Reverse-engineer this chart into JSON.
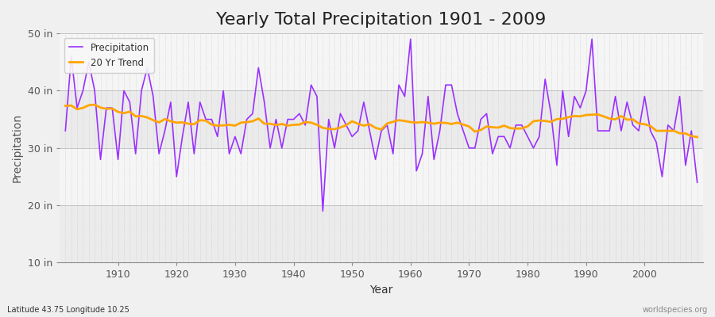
{
  "title": "Yearly Total Precipitation 1901 - 2009",
  "xlabel": "Year",
  "ylabel": "Precipitation",
  "footnote_left": "Latitude 43.75 Longitude 10.25",
  "footnote_right": "worldspecies.org",
  "ylim": [
    10,
    50
  ],
  "yticks": [
    10,
    20,
    30,
    40,
    50
  ],
  "ytick_labels": [
    "10 in",
    "20 in",
    "30 in",
    "40 in",
    "50 in"
  ],
  "years": [
    1901,
    1902,
    1903,
    1904,
    1905,
    1906,
    1907,
    1908,
    1909,
    1910,
    1911,
    1912,
    1913,
    1914,
    1915,
    1916,
    1917,
    1918,
    1919,
    1920,
    1921,
    1922,
    1923,
    1924,
    1925,
    1926,
    1927,
    1928,
    1929,
    1930,
    1931,
    1932,
    1933,
    1934,
    1935,
    1936,
    1937,
    1938,
    1939,
    1940,
    1941,
    1942,
    1943,
    1944,
    1945,
    1946,
    1947,
    1948,
    1949,
    1950,
    1951,
    1952,
    1953,
    1954,
    1955,
    1956,
    1957,
    1958,
    1959,
    1960,
    1961,
    1962,
    1963,
    1964,
    1965,
    1966,
    1967,
    1968,
    1969,
    1970,
    1971,
    1972,
    1973,
    1974,
    1975,
    1976,
    1977,
    1978,
    1979,
    1980,
    1981,
    1982,
    1983,
    1984,
    1985,
    1986,
    1987,
    1988,
    1989,
    1990,
    1991,
    1992,
    1993,
    1994,
    1995,
    1996,
    1997,
    1998,
    1999,
    2000,
    2001,
    2002,
    2003,
    2004,
    2005,
    2006,
    2007,
    2008,
    2009
  ],
  "precip": [
    33,
    46,
    37,
    40,
    45,
    40,
    28,
    37,
    37,
    28,
    40,
    38,
    29,
    40,
    44,
    39,
    29,
    33,
    38,
    25,
    32,
    38,
    29,
    38,
    35,
    35,
    32,
    40,
    29,
    32,
    29,
    35,
    36,
    44,
    38,
    30,
    35,
    30,
    35,
    35,
    36,
    34,
    41,
    39,
    19,
    35,
    30,
    36,
    34,
    32,
    33,
    38,
    33,
    28,
    33,
    34,
    29,
    41,
    39,
    49,
    26,
    29,
    39,
    28,
    33,
    41,
    41,
    36,
    33,
    30,
    30,
    35,
    36,
    29,
    32,
    32,
    30,
    34,
    34,
    32,
    30,
    32,
    42,
    36,
    27,
    40,
    32,
    39,
    37,
    40,
    49,
    33,
    33,
    33,
    39,
    33,
    38,
    34,
    33,
    39,
    33,
    31,
    25,
    34,
    33,
    39,
    27,
    33,
    24
  ],
  "precip_color": "#9B30FF",
  "trend_color": "#FFA500",
  "bg_color": "#F0F0F0",
  "plot_bg_light": "#F5F5F5",
  "plot_bg_dark": "#E8E8E8",
  "grid_color": "#CCCCCC",
  "title_fontsize": 16,
  "legend_loc": "upper left",
  "band_colors": [
    "#EBEBEB",
    "#F5F5F5"
  ]
}
